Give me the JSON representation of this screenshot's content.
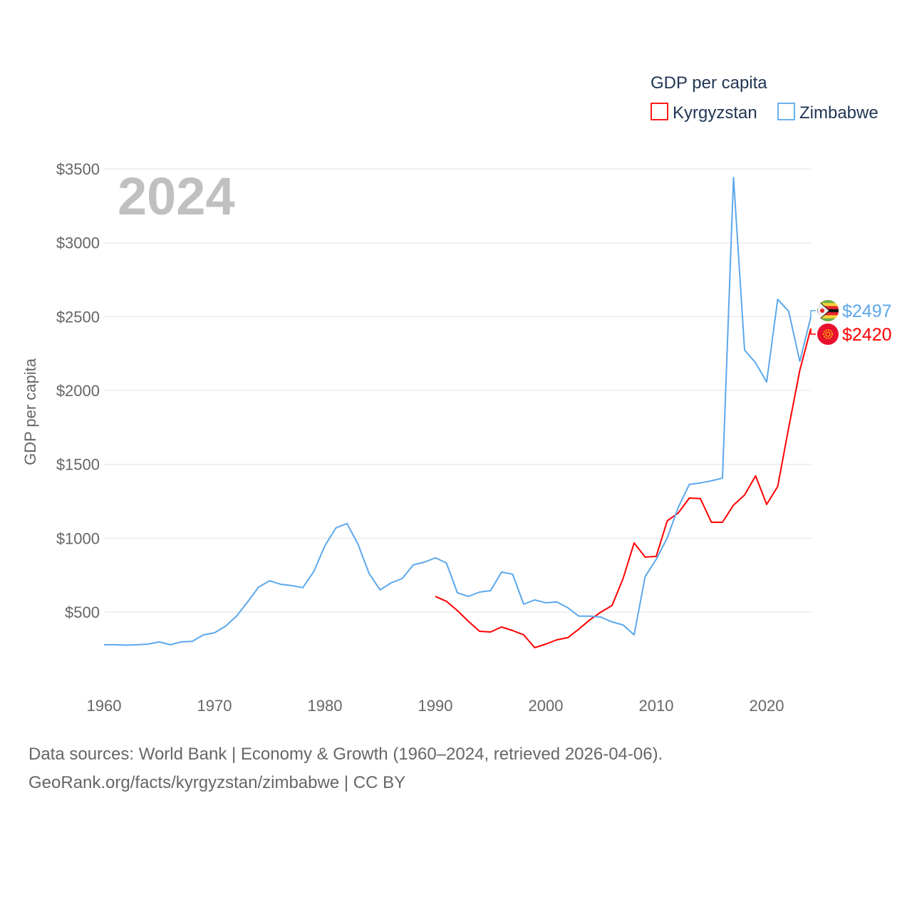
{
  "chart_data": {
    "type": "line",
    "title": "GDP per capita",
    "year_label": "2024",
    "ylabel": "GDP per capita",
    "xlabel": "",
    "ylim": [
      0,
      3500
    ],
    "xlim": [
      1960,
      2024
    ],
    "grid": true,
    "legend_position": "top-right",
    "y_ticks": [
      500,
      1000,
      1500,
      2000,
      2500,
      3000,
      3500
    ],
    "y_tick_labels": [
      "$500",
      "$1000",
      "$1500",
      "$2000",
      "$2500",
      "$3000",
      "$3500"
    ],
    "x_ticks": [
      1960,
      1970,
      1980,
      1990,
      2000,
      2010,
      2020
    ],
    "x_tick_labels": [
      "1960",
      "1970",
      "1980",
      "1990",
      "2000",
      "2010",
      "2020"
    ],
    "series": [
      {
        "name": "Kyrgyzstan",
        "color": "#ff0000",
        "flag": "kyrgyzstan-flag",
        "end_label": "$2420",
        "x_start": 1990,
        "values": [
          606,
          573,
          510,
          437,
          370,
          365,
          399,
          375,
          346,
          259,
          283,
          312,
          327,
          385,
          448,
          500,
          544,
          727,
          968,
          872,
          877,
          1118,
          1171,
          1272,
          1268,
          1108,
          1108,
          1224,
          1292,
          1422,
          1229,
          1350,
          1750,
          2136,
          2420
        ]
      },
      {
        "name": "Zimbabwe",
        "color": "#5ca8ec",
        "flag": "zimbabwe-flag",
        "end_label": "$2497",
        "x_start": 1960,
        "values": [
          279,
          279,
          276,
          279,
          283,
          298,
          279,
          298,
          302,
          346,
          360,
          404,
          472,
          568,
          669,
          712,
          688,
          679,
          665,
          775,
          949,
          1070,
          1099,
          959,
          761,
          650,
          698,
          727,
          819,
          838,
          867,
          833,
          630,
          606,
          635,
          645,
          771,
          756,
          553,
          582,
          563,
          568,
          529,
          472,
          472,
          466,
          433,
          413,
          346,
          741,
          857,
          1002,
          1210,
          1364,
          1374,
          1388,
          1407,
          3442,
          2274,
          2187,
          2057,
          2617,
          2535,
          2197,
          2497
        ]
      }
    ]
  },
  "footer": {
    "line1": "Data sources: World Bank | Economy & Growth (1960–2024, retrieved 2026-04-06).",
    "line2": "GeoRank.org/facts/kyrgyzstan/zimbabwe | CC BY"
  }
}
